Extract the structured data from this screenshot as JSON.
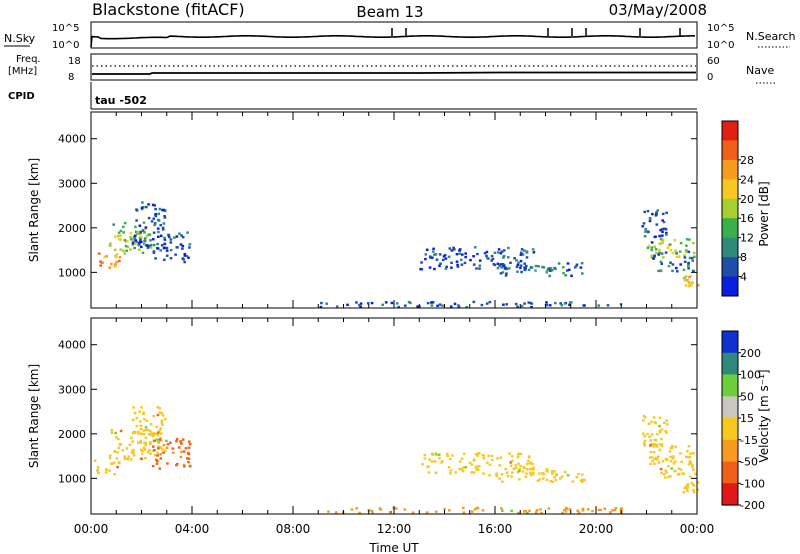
{
  "header": {
    "station": "Blackstone (fitACF)",
    "beam": "Beam 13",
    "date": "03/May/2008"
  },
  "top_panels": {
    "nsky_label": "N.Sky",
    "nsky_ticks": [
      "10^5",
      "10^0"
    ],
    "nsearch_label": "N.Search",
    "nsearch_ticks": [
      "10^5",
      "10^0"
    ],
    "freq_label_1": "Freq.",
    "freq_label_2": "[MHz]",
    "freq_ticks": [
      "18",
      "8"
    ],
    "nave_label": "Nave",
    "nave_ticks": [
      "60",
      "0"
    ],
    "cpid_label": "CPID",
    "cpid_value": "tau -502"
  },
  "chart_data": [
    {
      "type": "heatmap",
      "name": "power",
      "ylabel": "Slant Range [km]",
      "ylim": [
        200,
        4600
      ],
      "yticks": [
        "1000",
        "2000",
        "3000",
        "4000"
      ],
      "xlim": [
        0,
        24
      ],
      "colorbar_label": "Power [dB]",
      "colorbar_ticks": [
        "4",
        "8",
        "12",
        "16",
        "20",
        "24",
        "28"
      ],
      "colorbar_colors": [
        "#0b1ee0",
        "#1d4ea8",
        "#2f8a7c",
        "#3bb04a",
        "#a8cf30",
        "#f7c820",
        "#f79a20",
        "#f06018",
        "#e02010"
      ],
      "regions": [
        {
          "t": [
            0.1,
            1.1
          ],
          "r": [
            1050,
            1450
          ],
          "v": 26
        },
        {
          "t": [
            0.7,
            2.4
          ],
          "r": [
            1400,
            2100
          ],
          "v": 16
        },
        {
          "t": [
            1.6,
            2.9
          ],
          "r": [
            1500,
            2600
          ],
          "v": 6
        },
        {
          "t": [
            2.4,
            3.9
          ],
          "r": [
            1200,
            1900
          ],
          "v": 6
        },
        {
          "t": [
            13.0,
            17.5
          ],
          "r": [
            1050,
            1550
          ],
          "v": 5
        },
        {
          "t": [
            16.0,
            19.5
          ],
          "r": [
            900,
            1200
          ],
          "v": 8
        },
        {
          "t": [
            21.8,
            22.8
          ],
          "r": [
            1600,
            2400
          ],
          "v": 6
        },
        {
          "t": [
            22.0,
            23.9
          ],
          "r": [
            1300,
            1750
          ],
          "v": 18
        },
        {
          "t": [
            22.2,
            23.9
          ],
          "r": [
            1000,
            1450
          ],
          "v": 8
        },
        {
          "t": [
            23.4,
            24.0
          ],
          "r": [
            650,
            900
          ],
          "v": 22
        },
        {
          "t": [
            9.0,
            21.0
          ],
          "r": [
            200,
            320
          ],
          "v": 6
        }
      ]
    },
    {
      "type": "heatmap",
      "name": "velocity",
      "ylabel": "Slant Range [km]",
      "ylim": [
        200,
        4600
      ],
      "yticks": [
        "1000",
        "2000",
        "3000",
        "4000"
      ],
      "xlim": [
        0,
        24
      ],
      "xlabel": "Time UT",
      "xticks": [
        "00:00",
        "04:00",
        "08:00",
        "12:00",
        "16:00",
        "20:00",
        "00:00"
      ],
      "colorbar_label": "Velocity [m s⁻¹]",
      "colorbar_ticks": [
        "200",
        "100",
        "50",
        "15",
        "-15",
        "-50",
        "-100",
        "-200"
      ],
      "colorbar_colors": [
        "#1030d0",
        "#2f8a7c",
        "#6ccf3a",
        "#c8c8c0",
        "#f7c820",
        "#f79a20",
        "#f06018",
        "#e01818"
      ],
      "regions": [
        {
          "t": [
            0.1,
            1.1
          ],
          "r": [
            1050,
            1450
          ],
          "v": 0
        },
        {
          "t": [
            0.7,
            2.4
          ],
          "r": [
            1400,
            2100
          ],
          "v": 0
        },
        {
          "t": [
            1.6,
            2.9
          ],
          "r": [
            1500,
            2600
          ],
          "v": 0
        },
        {
          "t": [
            2.4,
            3.9
          ],
          "r": [
            1200,
            1900
          ],
          "v": -60
        },
        {
          "t": [
            13.0,
            17.5
          ],
          "r": [
            1050,
            1550
          ],
          "v": 0
        },
        {
          "t": [
            16.0,
            19.5
          ],
          "r": [
            900,
            1200
          ],
          "v": 0
        },
        {
          "t": [
            21.8,
            22.8
          ],
          "r": [
            1600,
            2400
          ],
          "v": 0
        },
        {
          "t": [
            22.0,
            23.9
          ],
          "r": [
            1300,
            1750
          ],
          "v": 0
        },
        {
          "t": [
            22.2,
            23.9
          ],
          "r": [
            1000,
            1450
          ],
          "v": 0
        },
        {
          "t": [
            23.4,
            24.0
          ],
          "r": [
            650,
            900
          ],
          "v": 0
        },
        {
          "t": [
            9.0,
            21.0
          ],
          "r": [
            200,
            320
          ],
          "v": -30
        }
      ]
    }
  ]
}
